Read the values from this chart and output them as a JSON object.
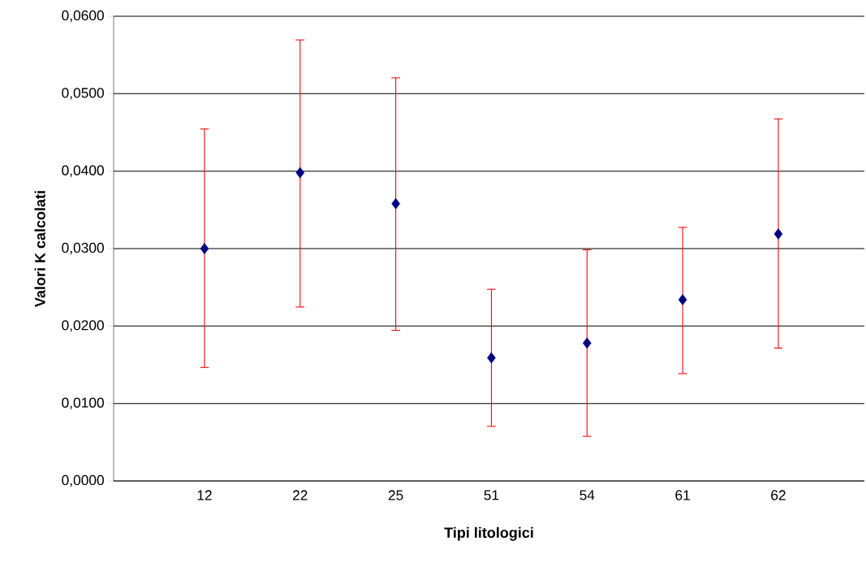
{
  "chart_data": {
    "type": "scatter",
    "xlabel": "Tipi litologici",
    "ylabel": "Valori K calcolati",
    "categories": [
      "12",
      "22",
      "25",
      "51",
      "54",
      "61",
      "62"
    ],
    "series": [
      {
        "color": "#000080",
        "values": [
          0.03,
          0.0398,
          0.0358,
          0.0159,
          0.0178,
          0.0234,
          0.0319
        ],
        "errors": [
          [
            0.0146,
            0.0455
          ],
          [
            0.0224,
            0.057
          ],
          [
            0.0194,
            0.0521
          ],
          [
            0.007,
            0.0248
          ],
          [
            0.0057,
            0.0299
          ],
          [
            0.0138,
            0.0328
          ],
          [
            0.0171,
            0.0468
          ]
        ]
      }
    ],
    "ylim": [
      0,
      0.06
    ],
    "yticks": [
      {
        "value": 0,
        "label": "0,0000"
      },
      {
        "value": 0.01,
        "label": "0,0100"
      },
      {
        "value": 0.02,
        "label": "0,0200"
      },
      {
        "value": 0.03,
        "label": "0,0300"
      },
      {
        "value": 0.04,
        "label": "0,0400"
      },
      {
        "value": 0.05,
        "label": "0,0500"
      },
      {
        "value": 0.06,
        "label": "0,0600"
      }
    ],
    "grid": "y",
    "marker": "diamond"
  }
}
